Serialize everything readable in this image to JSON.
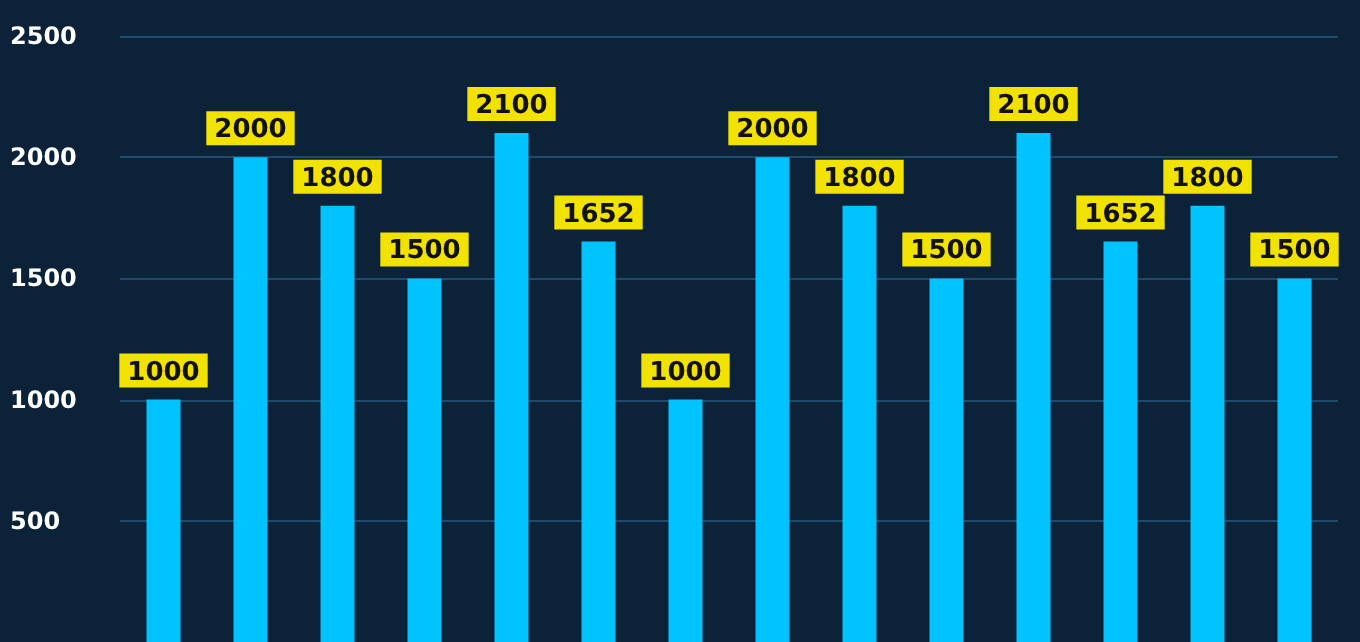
{
  "chart_data": {
    "type": "bar",
    "categories": [
      null,
      null,
      null,
      null,
      null,
      null,
      null,
      null,
      null,
      null,
      null,
      null,
      null,
      null
    ],
    "values": [
      1000,
      2000,
      1800,
      1500,
      2100,
      1652,
      1000,
      2000,
      1800,
      1500,
      2100,
      1652,
      1800,
      1500
    ],
    "color": "#00c3ff",
    "ylim": [
      0,
      2500
    ],
    "yticks": [
      500,
      1000,
      1500,
      2000,
      2500
    ],
    "grid": "y",
    "data_labels": true,
    "tick_labels": "y"
  }
}
